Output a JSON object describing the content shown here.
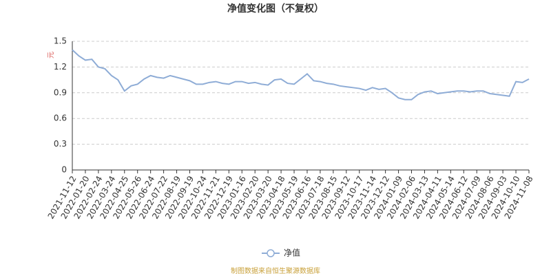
{
  "chart_data": {
    "type": "line",
    "title": "净值变化图（不复权）",
    "y_label": "元",
    "source": "制图数据来自恒生聚源数据库",
    "categories": [
      "2021-11-12",
      null,
      "2022-01-20",
      null,
      "2022-02-24",
      null,
      "2022-03-24",
      null,
      "2022-04-25",
      null,
      "2022-05-26",
      null,
      "2022-06-24",
      null,
      "2022-07-22",
      null,
      "2022-08-19",
      null,
      "2022-09-19",
      null,
      "2022-10-24",
      null,
      "2022-11-21",
      null,
      "2022-12-19",
      null,
      "2023-01-16",
      null,
      "2023-02-20",
      null,
      "2023-03-20",
      null,
      "2023-04-18",
      null,
      "2023-05-19",
      null,
      "2023-06-16",
      null,
      "2023-07-18",
      null,
      "2023-08-15",
      null,
      "2023-09-12",
      null,
      "2023-10-17",
      null,
      "2023-11-14",
      null,
      "2023-12-12",
      null,
      "2024-01-09",
      null,
      "2024-02-06",
      null,
      "2024-03-13",
      null,
      "2024-04-11",
      null,
      "2024-05-14",
      null,
      "2024-06-12",
      null,
      "2024-07-09",
      null,
      "2024-08-06",
      null,
      "2024-09-03",
      null,
      "2024-10-10",
      null,
      "2024-11-08"
    ],
    "series": [
      {
        "name": "净值",
        "color": "#8eacd6",
        "values": [
          1.4,
          1.33,
          1.28,
          1.29,
          1.2,
          1.18,
          1.1,
          1.05,
          0.92,
          0.98,
          1.0,
          1.06,
          1.1,
          1.08,
          1.07,
          1.1,
          1.08,
          1.06,
          1.04,
          1.0,
          1.0,
          1.02,
          1.03,
          1.01,
          1.0,
          1.03,
          1.03,
          1.01,
          1.02,
          1.0,
          0.99,
          1.05,
          1.06,
          1.01,
          1.0,
          1.06,
          1.12,
          1.04,
          1.03,
          1.01,
          1.0,
          0.98,
          0.97,
          0.96,
          0.95,
          0.93,
          0.96,
          0.94,
          0.95,
          0.9,
          0.84,
          0.82,
          0.82,
          0.88,
          0.91,
          0.92,
          0.89,
          0.9,
          0.91,
          0.92,
          0.92,
          0.91,
          0.92,
          0.92,
          0.89,
          0.88,
          0.87,
          0.86,
          1.03,
          1.02,
          1.06
        ]
      }
    ],
    "ylim": [
      0,
      1.5
    ],
    "yticks": [
      0,
      0.3,
      0.6,
      0.9,
      1.2,
      1.5
    ],
    "grid": true
  }
}
